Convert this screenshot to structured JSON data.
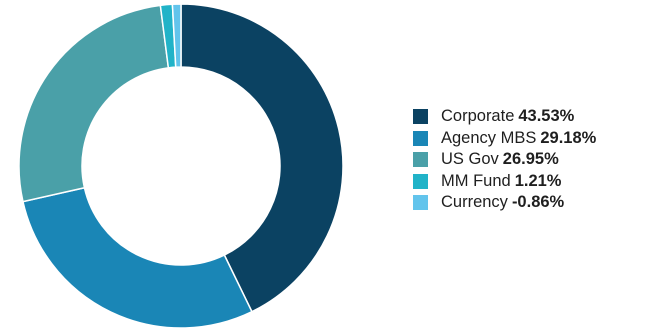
{
  "chart_data": {
    "type": "pie",
    "donut": true,
    "legend_position": "right",
    "series": [
      {
        "name": "Corporate",
        "value": 43.53,
        "label": "43.53%",
        "color": "#0b4262"
      },
      {
        "name": "Agency MBS",
        "value": 29.18,
        "label": "29.18%",
        "color": "#1a86b6"
      },
      {
        "name": "US Gov",
        "value": 26.95,
        "label": "26.95%",
        "color": "#4aa0a8"
      },
      {
        "name": "MM Fund",
        "value": 1.21,
        "label": "1.21%",
        "color": "#21b3c8"
      },
      {
        "name": "Currency",
        "value": -0.86,
        "label": "-0.86%",
        "color": "#62c4ec"
      }
    ]
  }
}
